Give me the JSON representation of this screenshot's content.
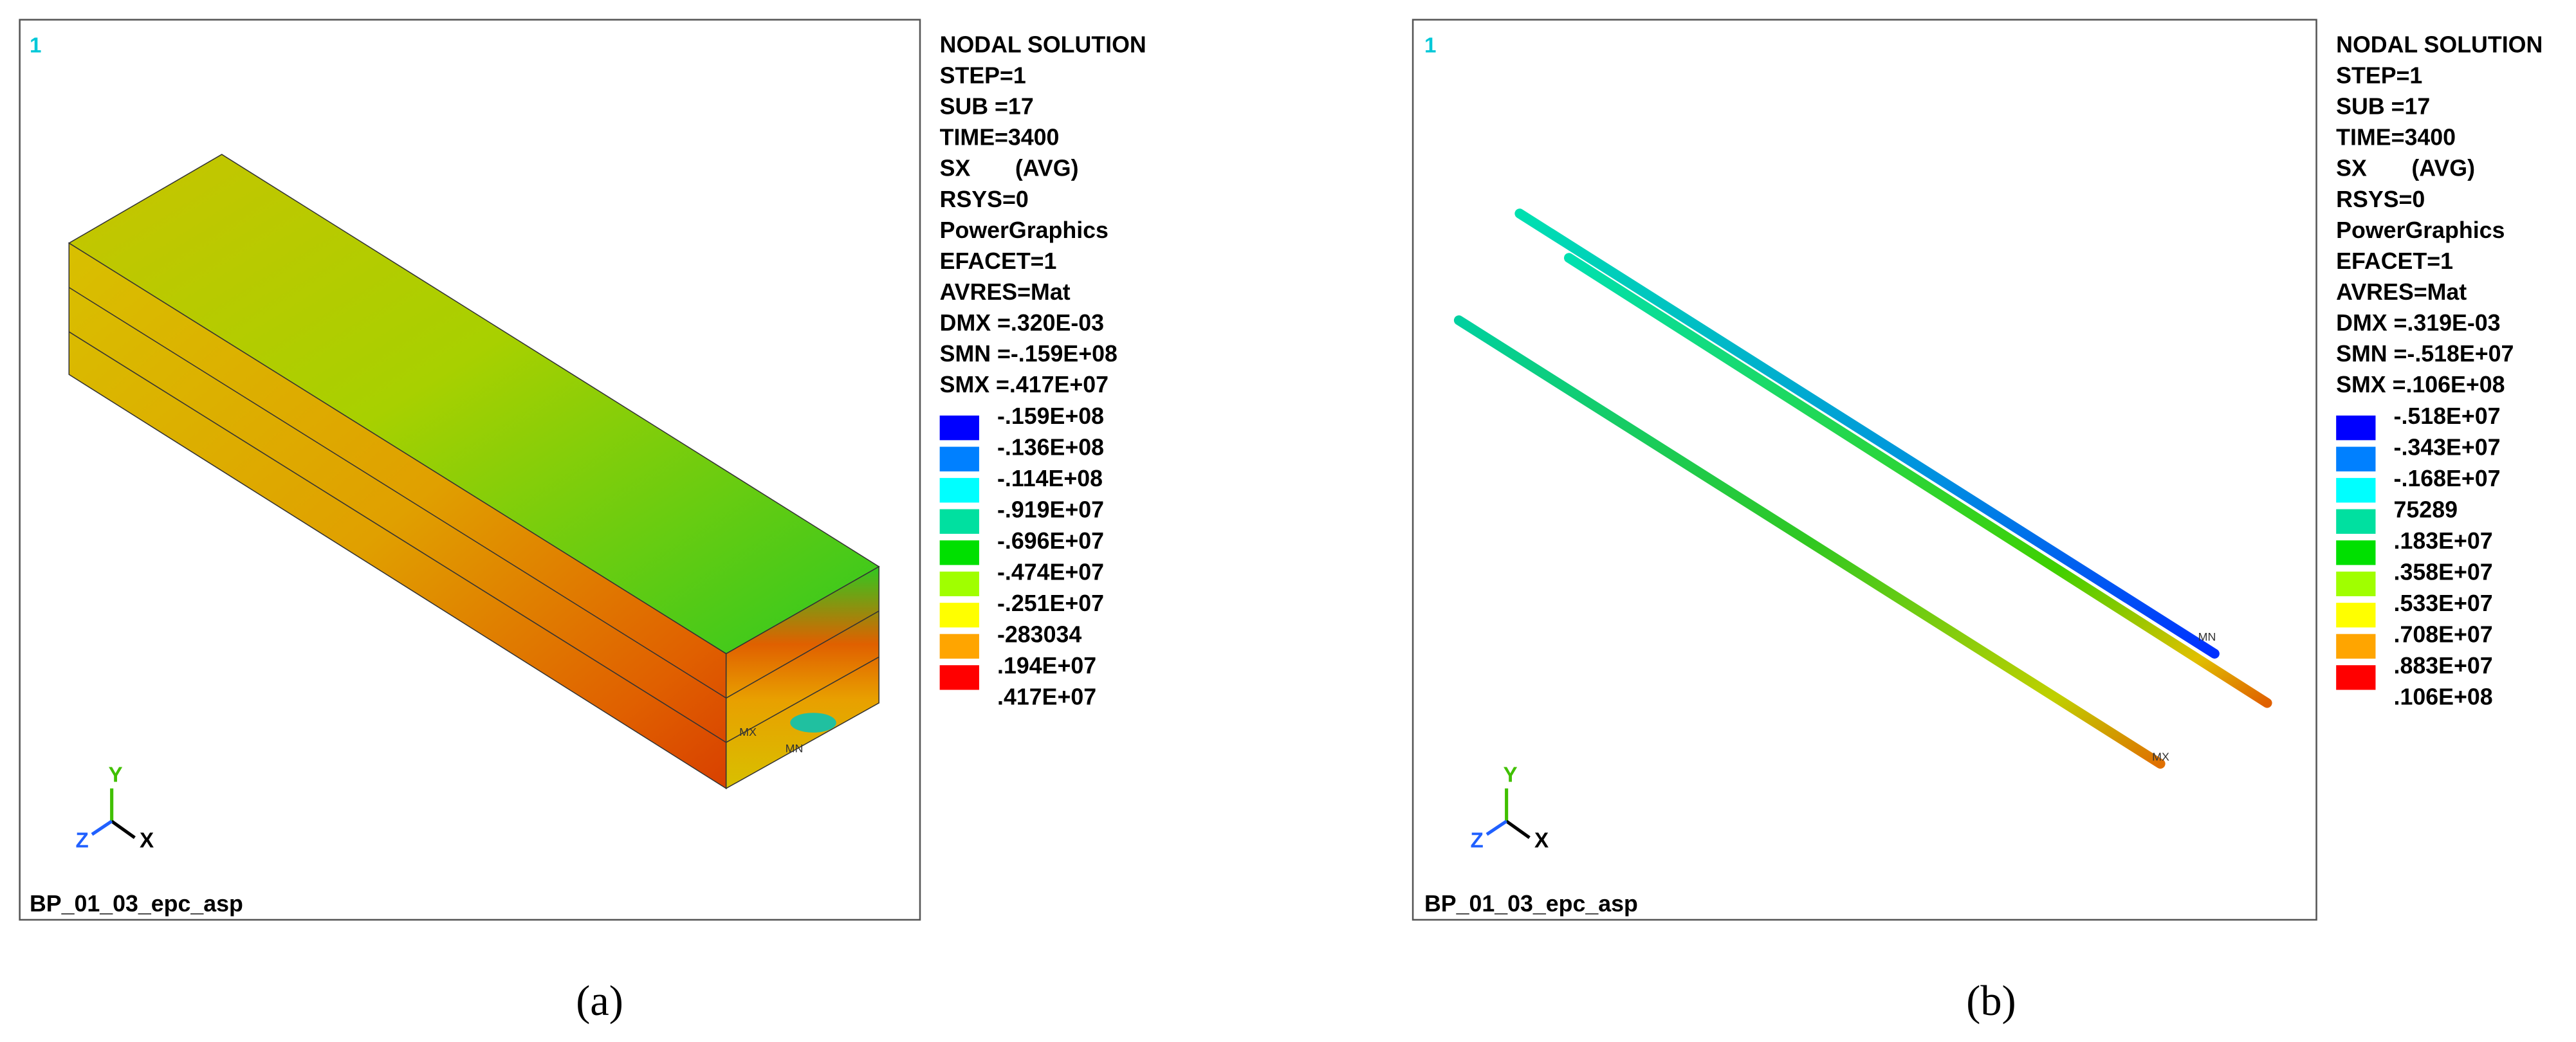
{
  "panels": [
    {
      "viewport": "1",
      "info": [
        "NODAL SOLUTION",
        "STEP=1",
        "SUB =17",
        "TIME=3400",
        "SX       (AVG)",
        "RSYS=0",
        "PowerGraphics",
        "EFACET=1",
        "AVRES=Mat",
        "DMX =.320E-03",
        "SMN =-.159E+08",
        "SMX =.417E+07"
      ],
      "legend": {
        "labels": [
          "-.159E+08",
          "-.136E+08",
          "-.114E+08",
          "-.919E+07",
          "-.696E+07",
          "-.474E+07",
          "-.251E+07",
          "-283034",
          ".194E+07",
          ".417E+07"
        ],
        "colors": [
          "#0000ff",
          "#0080ff",
          "#00ffff",
          "#00e0a0",
          "#00e000",
          "#a0ff00",
          "#ffff00",
          "#ffa500",
          "#ff0000"
        ]
      },
      "markers": {
        "max": "MX",
        "min": "MN"
      },
      "triad": {
        "x": "X",
        "y": "Y",
        "z": "Z"
      },
      "footer": "BP_01_03_epc_asp",
      "caption": "(a)"
    },
    {
      "viewport": "1",
      "info": [
        "NODAL SOLUTION",
        "STEP=1",
        "SUB =17",
        "TIME=3400",
        "SX       (AVG)",
        "RSYS=0",
        "PowerGraphics",
        "EFACET=1",
        "AVRES=Mat",
        "DMX =.319E-03",
        "SMN =-.518E+07",
        "SMX =.106E+08"
      ],
      "legend": {
        "labels": [
          "-.518E+07",
          "-.343E+07",
          "-.168E+07",
          "75289",
          ".183E+07",
          ".358E+07",
          ".533E+07",
          ".708E+07",
          ".883E+07",
          ".106E+08"
        ],
        "colors": [
          "#0000ff",
          "#0080ff",
          "#00ffff",
          "#00e0a0",
          "#00e000",
          "#a0ff00",
          "#ffff00",
          "#ffa500",
          "#ff0000"
        ]
      },
      "markers": {
        "max": "MX",
        "min": "MN"
      },
      "triad": {
        "x": "X",
        "y": "Y",
        "z": "Z"
      },
      "footer": "BP_01_03_epc_asp",
      "caption": "(b)"
    }
  ]
}
